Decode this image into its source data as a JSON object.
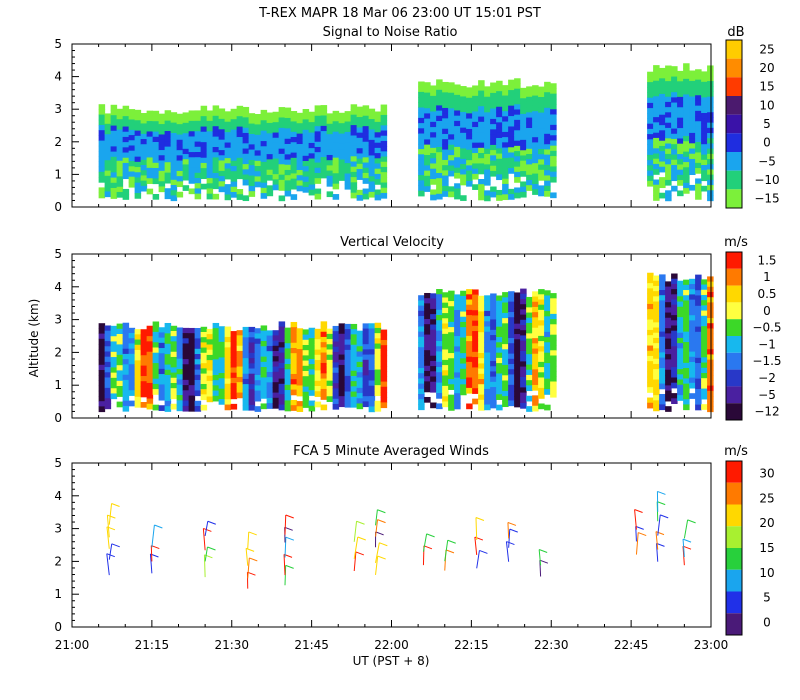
{
  "header": {
    "title": "T-REX   MAPR 18 Mar 06   23:00 UT   15:01   PST"
  },
  "chart_data": [
    {
      "type": "heatmap",
      "title": "Signal to Noise Ratio",
      "xlim": [
        "21:00",
        "23:00"
      ],
      "ylim": [
        0,
        5
      ],
      "y_ticks": [
        "0",
        "1",
        "2",
        "3",
        "4",
        "5"
      ],
      "x_ticks": [
        "21:00",
        "21:15",
        "21:30",
        "21:45",
        "22:00",
        "22:15",
        "22:30",
        "22:45",
        "23:00"
      ],
      "colorbar": {
        "unit": "dB",
        "labels": [
          "25",
          "20",
          "15",
          "10",
          "5",
          "0",
          "−5",
          "−10",
          "−15"
        ]
      },
      "data_segments": [
        {
          "start": "21:05",
          "end": "21:59",
          "top_km": 3.0
        },
        {
          "start": "22:05",
          "end": "22:30",
          "top_km": 3.8
        },
        {
          "start": "22:48",
          "end": "23:00",
          "top_km": 4.3
        }
      ]
    },
    {
      "type": "heatmap",
      "title": "Vertical Velocity",
      "ylabel": "Altitude (km)",
      "xlim": [
        "21:00",
        "23:00"
      ],
      "ylim": [
        0,
        5
      ],
      "y_ticks": [
        "0",
        "1",
        "2",
        "3",
        "4",
        "5"
      ],
      "x_ticks": [
        "21:00",
        "21:15",
        "21:30",
        "21:45",
        "22:00",
        "22:15",
        "22:30",
        "22:45",
        "23:00"
      ],
      "colorbar": {
        "unit": "m/s",
        "labels": [
          "1.5",
          "1",
          "0.5",
          "0",
          "−0.5",
          "−1",
          "−1.5",
          "−2",
          "−5",
          "−12"
        ]
      },
      "data_segments": [
        {
          "start": "21:05",
          "end": "21:59",
          "top_km": 2.8
        },
        {
          "start": "22:05",
          "end": "22:30",
          "top_km": 3.8
        },
        {
          "start": "22:48",
          "end": "23:00",
          "top_km": 4.3
        }
      ]
    },
    {
      "type": "scatter",
      "title": "FCA 5 Minute Averaged Winds",
      "xlabel": "UT  (PST + 8)",
      "xlim": [
        "21:00",
        "23:00"
      ],
      "ylim": [
        0,
        5
      ],
      "y_ticks": [
        "0",
        "1",
        "2",
        "3",
        "4",
        "5"
      ],
      "x_ticks": [
        "21:00",
        "21:15",
        "21:30",
        "21:45",
        "22:00",
        "22:15",
        "22:30",
        "22:45",
        "23:00"
      ],
      "colorbar": {
        "unit": "m/s",
        "labels": [
          "30",
          "25",
          "20",
          "15",
          "10",
          "5",
          "0"
        ]
      },
      "barb_times_min": [
        7,
        15,
        25,
        33,
        40,
        53,
        57,
        66,
        70,
        76,
        82,
        88,
        106,
        110,
        115
      ]
    }
  ]
}
